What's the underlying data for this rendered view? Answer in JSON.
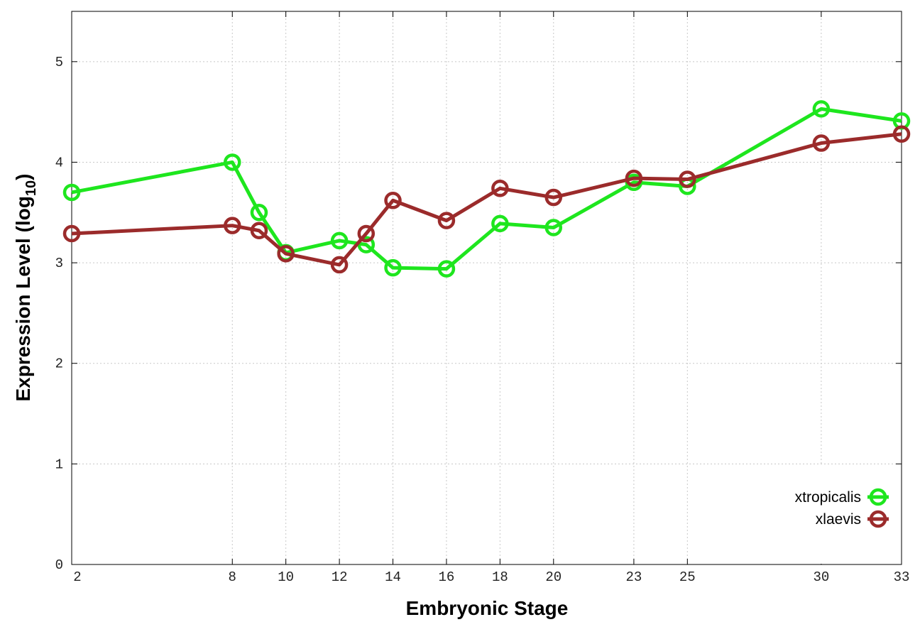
{
  "chart_data": {
    "type": "line",
    "x_label": "Embryonic Stage",
    "y_label": {
      "text": "Expression Level (log",
      "subscript": "10",
      "suffix": ")"
    },
    "xlim": [
      2,
      33
    ],
    "ylim": [
      0,
      5.5
    ],
    "xticks": [
      2,
      8,
      10,
      12,
      14,
      16,
      18,
      20,
      23,
      25,
      30,
      33
    ],
    "yticks": [
      0,
      1,
      2,
      3,
      4,
      5
    ],
    "grid": true,
    "legend": "bottom right",
    "x": [
      2,
      8,
      9,
      10,
      12,
      13,
      14,
      16,
      18,
      20,
      23,
      25,
      30,
      33
    ],
    "series": [
      {
        "name": "xtropicalis",
        "color": "#1ee61e",
        "values": [
          3.7,
          4.0,
          3.5,
          3.1,
          3.22,
          3.18,
          2.95,
          2.94,
          3.39,
          3.35,
          3.8,
          3.76,
          4.53,
          4.41
        ]
      },
      {
        "name": "xlaevis",
        "color": "#9b2b2b",
        "values": [
          3.29,
          3.37,
          3.32,
          3.09,
          2.98,
          3.29,
          3.62,
          3.42,
          3.74,
          3.65,
          3.84,
          3.83,
          4.19,
          4.28
        ]
      }
    ]
  }
}
